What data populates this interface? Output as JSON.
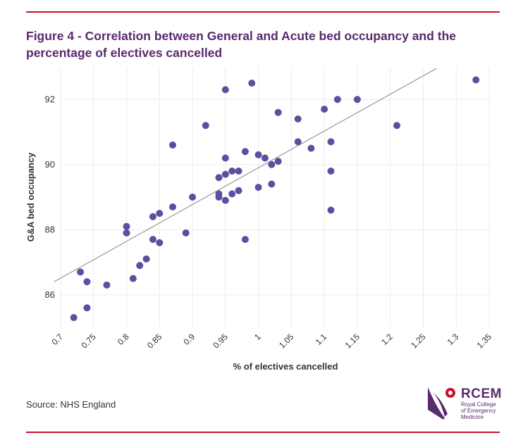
{
  "figure": {
    "title": "Figure 4 - Correlation between General and Acute bed occupancy and the percentage of electives cancelled",
    "source": "Source: NHS England"
  },
  "logo": {
    "abbr": "RCEM",
    "line1": "Royal College",
    "line2": "of Emergency",
    "line3": "Medicine"
  },
  "colors": {
    "accent": "#c8102e",
    "title": "#5a2a6e",
    "point": "#5b50a0",
    "trendline": "#999999"
  },
  "chart_data": {
    "type": "scatter",
    "title": "Figure 4 - Correlation between General and Acute bed occupancy and the percentage of electives cancelled",
    "xlabel": "% of electives cancelled",
    "ylabel": "G&A bed occupancy",
    "xlim": [
      0.7,
      1.35
    ],
    "ylim": [
      85,
      93
    ],
    "x_ticks": [
      0.7,
      0.75,
      0.8,
      0.85,
      0.9,
      0.95,
      1,
      1.05,
      1.1,
      1.15,
      1.2,
      1.25,
      1.3,
      1.35
    ],
    "x_tick_labels": [
      "0.7",
      "0.75",
      "0.8",
      "0.85",
      "0.9",
      "0.95",
      "1",
      "1.05",
      "1.1",
      "1.15",
      "1.2",
      "1.25",
      "1.3",
      "1.35"
    ],
    "y_ticks": [
      86,
      88,
      90,
      92
    ],
    "y_tick_labels": [
      "86",
      "88",
      "90",
      "92"
    ],
    "grid": true,
    "trendline": {
      "x": [
        0.69,
        1.27
      ],
      "y": [
        86.4,
        92.95
      ]
    },
    "points": [
      [
        0.72,
        85.3
      ],
      [
        0.73,
        86.7
      ],
      [
        0.74,
        86.4
      ],
      [
        0.74,
        85.6
      ],
      [
        0.77,
        86.3
      ],
      [
        0.8,
        88.1
      ],
      [
        0.8,
        87.9
      ],
      [
        0.81,
        86.5
      ],
      [
        0.82,
        86.9
      ],
      [
        0.83,
        87.1
      ],
      [
        0.84,
        88.4
      ],
      [
        0.84,
        87.7
      ],
      [
        0.85,
        88.5
      ],
      [
        0.85,
        87.6
      ],
      [
        0.87,
        90.6
      ],
      [
        0.87,
        88.7
      ],
      [
        0.89,
        87.9
      ],
      [
        0.9,
        89.0
      ],
      [
        0.92,
        91.2
      ],
      [
        0.94,
        89.6
      ],
      [
        0.94,
        89.1
      ],
      [
        0.94,
        89.0
      ],
      [
        0.95,
        92.3
      ],
      [
        0.95,
        90.2
      ],
      [
        0.95,
        89.7
      ],
      [
        0.95,
        88.9
      ],
      [
        0.96,
        89.8
      ],
      [
        0.96,
        89.1
      ],
      [
        0.97,
        89.8
      ],
      [
        0.97,
        89.2
      ],
      [
        0.98,
        90.4
      ],
      [
        0.98,
        87.7
      ],
      [
        0.99,
        92.5
      ],
      [
        1.0,
        90.3
      ],
      [
        1.0,
        89.3
      ],
      [
        1.01,
        90.2
      ],
      [
        1.02,
        90.0
      ],
      [
        1.02,
        89.4
      ],
      [
        1.03,
        91.6
      ],
      [
        1.03,
        90.1
      ],
      [
        1.06,
        91.4
      ],
      [
        1.06,
        90.7
      ],
      [
        1.08,
        90.5
      ],
      [
        1.1,
        91.7
      ],
      [
        1.11,
        90.7
      ],
      [
        1.11,
        89.8
      ],
      [
        1.11,
        88.6
      ],
      [
        1.12,
        92.0
      ],
      [
        1.15,
        92.0
      ],
      [
        1.21,
        91.2
      ],
      [
        1.33,
        92.6
      ]
    ]
  }
}
